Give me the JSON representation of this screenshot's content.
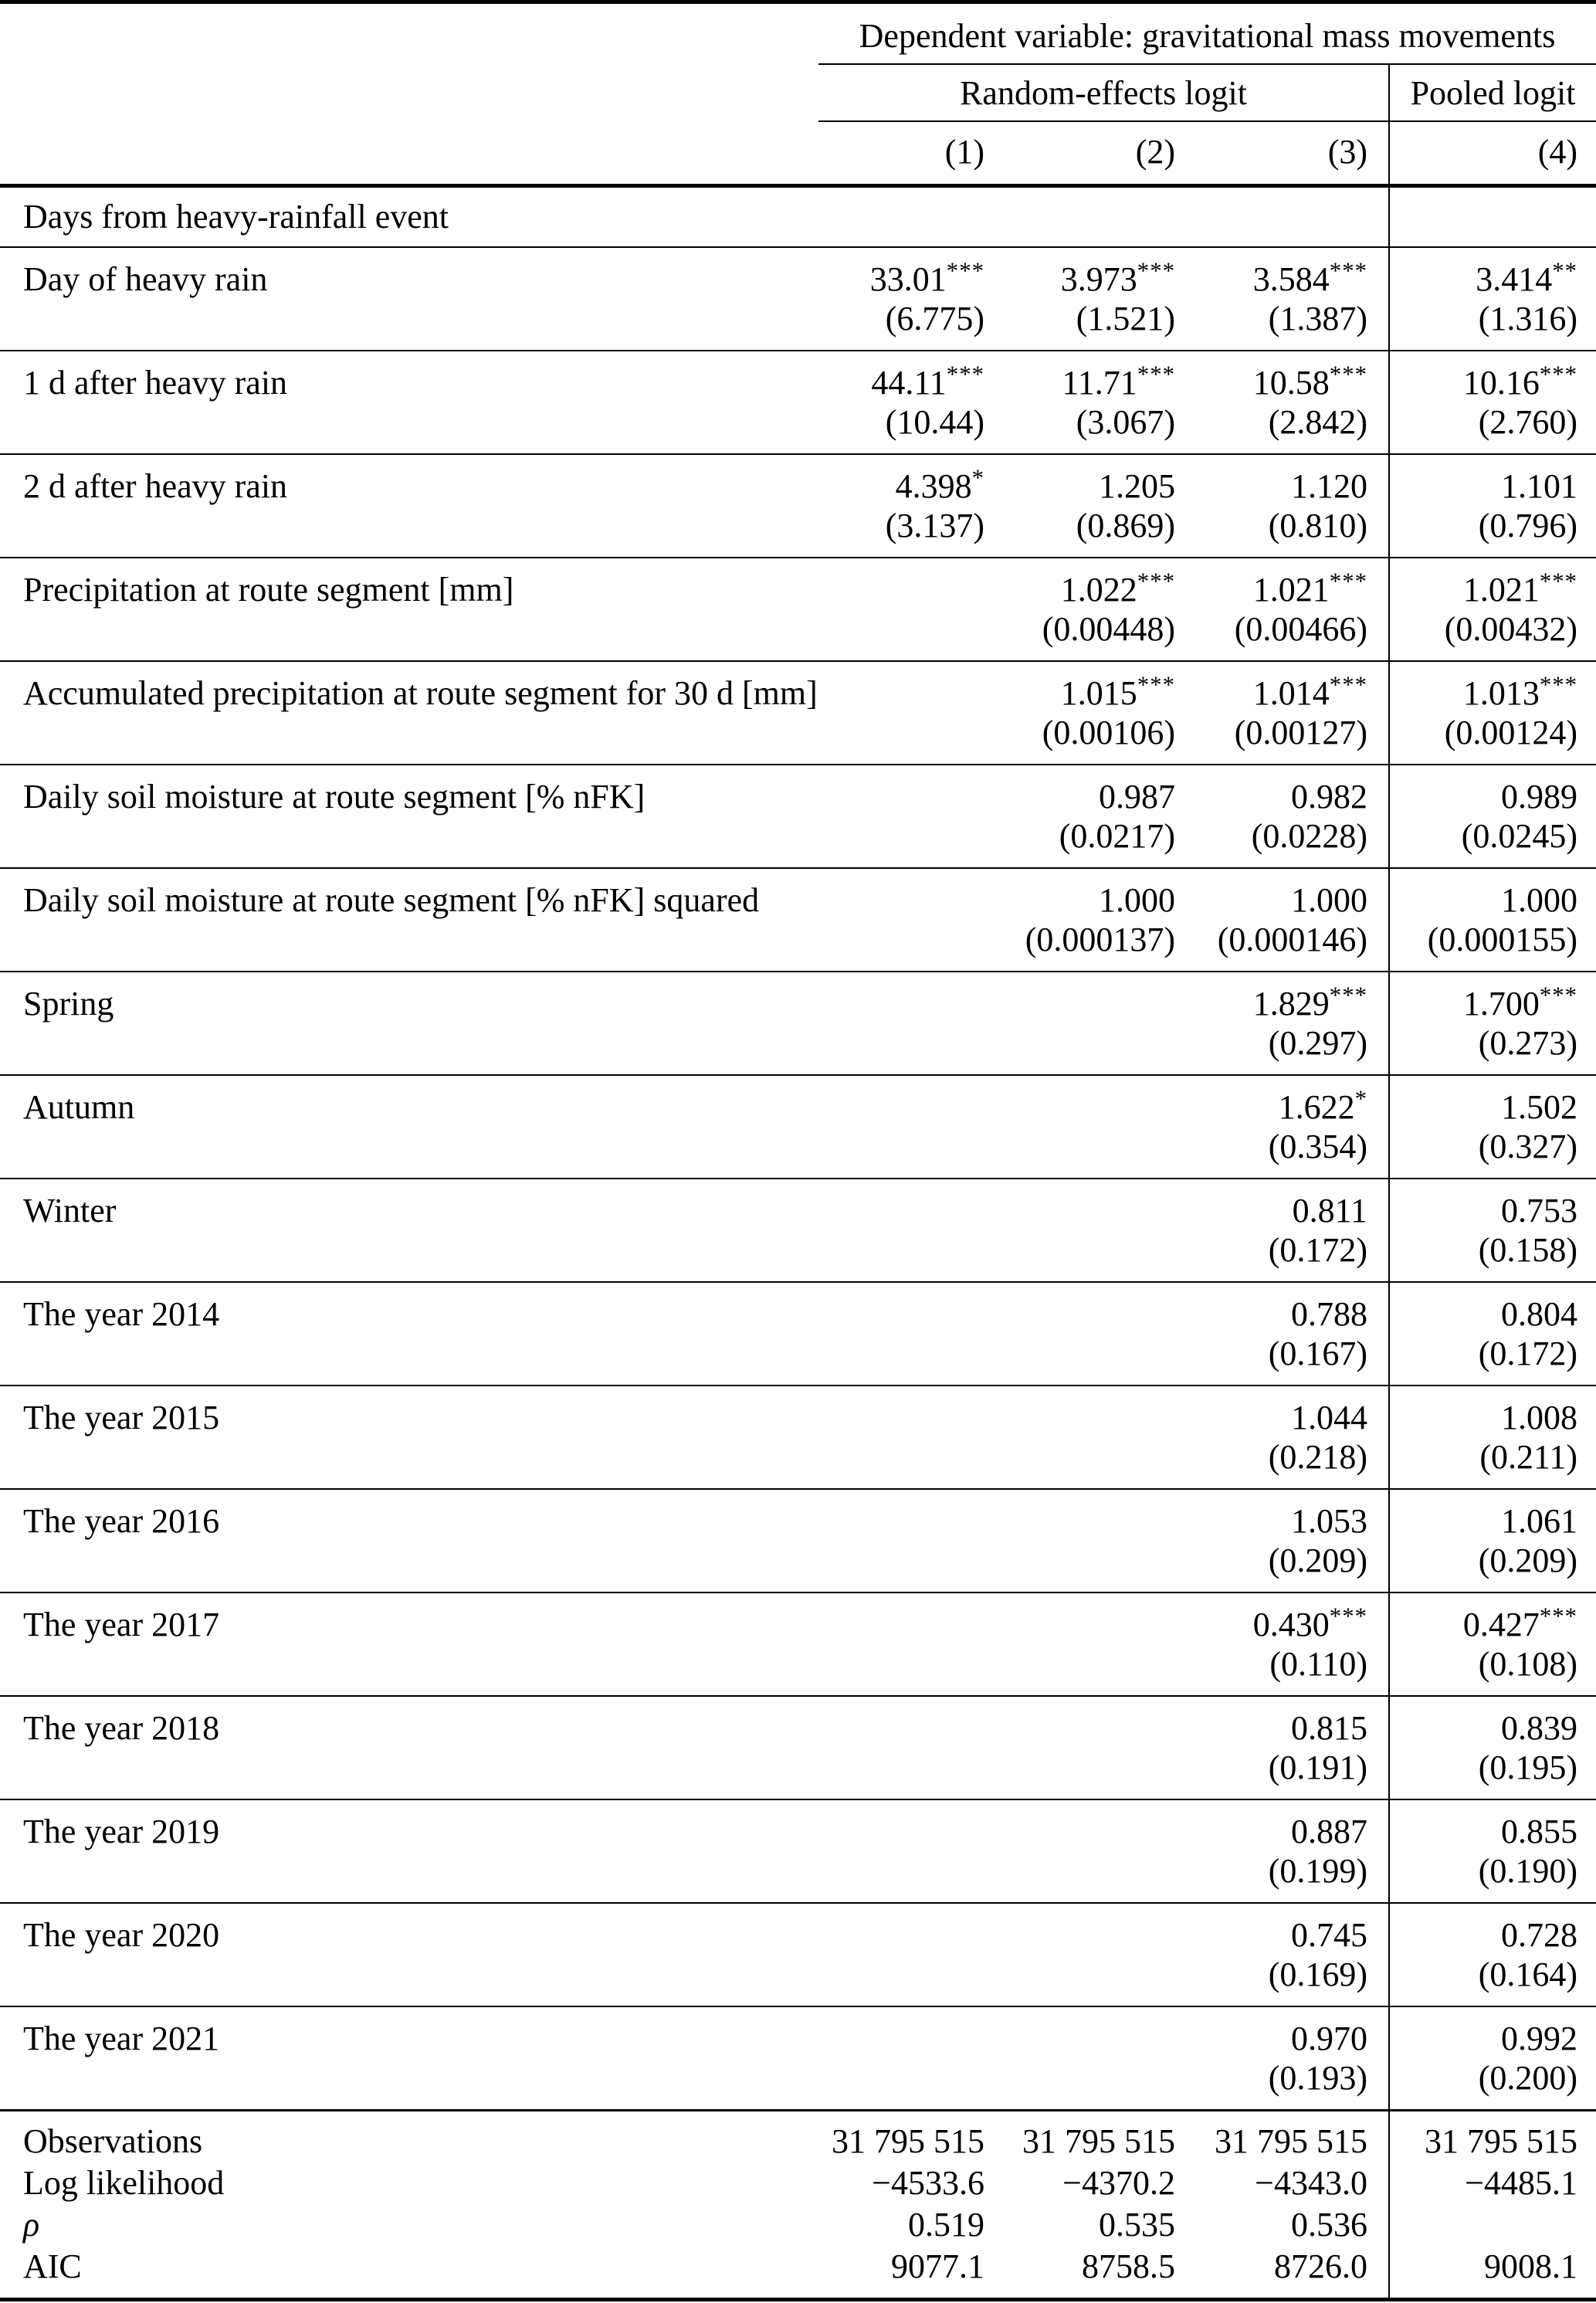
{
  "colors": {
    "background": "#ffffff",
    "text": "#000000",
    "rule": "#000000"
  },
  "table": {
    "dependent_variable_header": "Dependent variable: gravitational mass movements",
    "group_headers": {
      "random_effects": "Random-effects logit",
      "pooled": "Pooled logit"
    },
    "column_numbers": [
      "(1)",
      "(2)",
      "(3)",
      "(4)"
    ],
    "section_header": "Days from heavy-rainfall event",
    "rows": [
      {
        "label": "Day of heavy rain",
        "est": [
          "33.01",
          "3.973",
          "3.584",
          "3.414"
        ],
        "stars": [
          "***",
          "***",
          "***",
          "**"
        ],
        "se": [
          "(6.775)",
          "(1.521)",
          "(1.387)",
          "(1.316)"
        ]
      },
      {
        "label": "1 d after heavy rain",
        "est": [
          "44.11",
          "11.71",
          "10.58",
          "10.16"
        ],
        "stars": [
          "***",
          "***",
          "***",
          "***"
        ],
        "se": [
          "(10.44)",
          "(3.067)",
          "(2.842)",
          "(2.760)"
        ]
      },
      {
        "label": "2 d after heavy rain",
        "est": [
          "4.398",
          "1.205",
          "1.120",
          "1.101"
        ],
        "stars": [
          "*",
          "",
          "",
          ""
        ],
        "se": [
          "(3.137)",
          "(0.869)",
          "(0.810)",
          "(0.796)"
        ]
      },
      {
        "label": "Precipitation at route segment [mm]",
        "est": [
          "",
          "1.022",
          "1.021",
          "1.021"
        ],
        "stars": [
          "",
          "***",
          "***",
          "***"
        ],
        "se": [
          "",
          "(0.00448)",
          "(0.00466)",
          "(0.00432)"
        ]
      },
      {
        "label": "Accumulated precipitation at route segment for 30 d [mm]",
        "est": [
          "",
          "1.015",
          "1.014",
          "1.013"
        ],
        "stars": [
          "",
          "***",
          "***",
          "***"
        ],
        "se": [
          "",
          "(0.00106)",
          "(0.00127)",
          "(0.00124)"
        ]
      },
      {
        "label": "Daily soil moisture at route segment [% nFK]",
        "est": [
          "",
          "0.987",
          "0.982",
          "0.989"
        ],
        "stars": [
          "",
          "",
          "",
          ""
        ],
        "se": [
          "",
          "(0.0217)",
          "(0.0228)",
          "(0.0245)"
        ]
      },
      {
        "label": "Daily soil moisture at route segment [% nFK] squared",
        "est": [
          "",
          "1.000",
          "1.000",
          "1.000"
        ],
        "stars": [
          "",
          "",
          "",
          ""
        ],
        "se": [
          "",
          "(0.000137)",
          "(0.000146)",
          "(0.000155)"
        ]
      },
      {
        "label": "Spring",
        "est": [
          "",
          "",
          "1.829",
          "1.700"
        ],
        "stars": [
          "",
          "",
          "***",
          "***"
        ],
        "se": [
          "",
          "",
          "(0.297)",
          "(0.273)"
        ]
      },
      {
        "label": "Autumn",
        "est": [
          "",
          "",
          "1.622",
          "1.502"
        ],
        "stars": [
          "",
          "",
          "*",
          ""
        ],
        "se": [
          "",
          "",
          "(0.354)",
          "(0.327)"
        ]
      },
      {
        "label": "Winter",
        "est": [
          "",
          "",
          "0.811",
          "0.753"
        ],
        "stars": [
          "",
          "",
          "",
          ""
        ],
        "se": [
          "",
          "",
          "(0.172)",
          "(0.158)"
        ]
      },
      {
        "label": "The year 2014",
        "est": [
          "",
          "",
          "0.788",
          "0.804"
        ],
        "stars": [
          "",
          "",
          "",
          ""
        ],
        "se": [
          "",
          "",
          "(0.167)",
          "(0.172)"
        ]
      },
      {
        "label": "The year 2015",
        "est": [
          "",
          "",
          "1.044",
          "1.008"
        ],
        "stars": [
          "",
          "",
          "",
          ""
        ],
        "se": [
          "",
          "",
          "(0.218)",
          "(0.211)"
        ]
      },
      {
        "label": "The year 2016",
        "est": [
          "",
          "",
          "1.053",
          "1.061"
        ],
        "stars": [
          "",
          "",
          "",
          ""
        ],
        "se": [
          "",
          "",
          "(0.209)",
          "(0.209)"
        ]
      },
      {
        "label": "The year 2017",
        "est": [
          "",
          "",
          "0.430",
          "0.427"
        ],
        "stars": [
          "",
          "",
          "***",
          "***"
        ],
        "se": [
          "",
          "",
          "(0.110)",
          "(0.108)"
        ]
      },
      {
        "label": "The year 2018",
        "est": [
          "",
          "",
          "0.815",
          "0.839"
        ],
        "stars": [
          "",
          "",
          "",
          ""
        ],
        "se": [
          "",
          "",
          "(0.191)",
          "(0.195)"
        ]
      },
      {
        "label": "The year 2019",
        "est": [
          "",
          "",
          "0.887",
          "0.855"
        ],
        "stars": [
          "",
          "",
          "",
          ""
        ],
        "se": [
          "",
          "",
          "(0.199)",
          "(0.190)"
        ]
      },
      {
        "label": "The year 2020",
        "est": [
          "",
          "",
          "0.745",
          "0.728"
        ],
        "stars": [
          "",
          "",
          "",
          ""
        ],
        "se": [
          "",
          "",
          "(0.169)",
          "(0.164)"
        ]
      },
      {
        "label": "The year 2021",
        "est": [
          "",
          "",
          "0.970",
          "0.992"
        ],
        "stars": [
          "",
          "",
          "",
          ""
        ],
        "se": [
          "",
          "",
          "(0.193)",
          "(0.200)"
        ]
      }
    ],
    "footer_rows": [
      {
        "label": "Observations",
        "values": [
          "31 795 515",
          "31 795 515",
          "31 795 515",
          "31 795 515"
        ]
      },
      {
        "label": "Log likelihood",
        "values": [
          "−4533.6",
          "−4370.2",
          "−4343.0",
          "−4485.1"
        ]
      },
      {
        "label": "ρ",
        "italic": true,
        "values": [
          "0.519",
          "0.535",
          "0.536",
          ""
        ]
      },
      {
        "label": "AIC",
        "values": [
          "9077.1",
          "8758.5",
          "8726.0",
          "9008.1"
        ]
      }
    ]
  }
}
